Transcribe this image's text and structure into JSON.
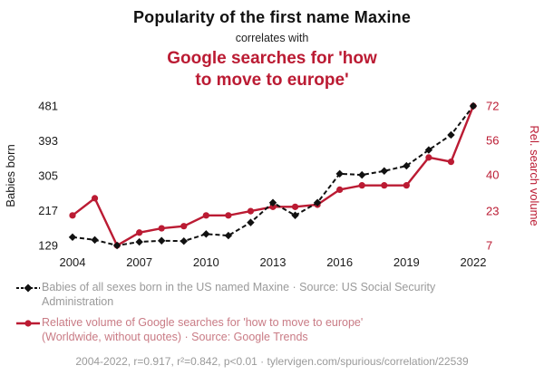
{
  "header": {
    "title": "Popularity of the first name Maxine",
    "connector": "correlates with",
    "subtitle": "Google searches for 'how\nto move to europe'"
  },
  "colors": {
    "accent": "#bb1b33",
    "series_black": "#111111",
    "legend_gray": "#9a9a9a",
    "legend_red": "#c97b85",
    "tick_color": "#1a1a1a"
  },
  "legend": [
    {
      "marker": "diamond",
      "marker_color": "#111111",
      "text_color": "#9a9a9a",
      "text": "Babies of all sexes born in the US named Maxine · Source: US Social Security\nAdministration"
    },
    {
      "marker": "circle",
      "marker_color": "#bb1b33",
      "text_color": "#c97b85",
      "text": "Relative volume of Google searches for 'how to move to europe'\n(Worldwide, without quotes) · Source: Google Trends"
    }
  ],
  "footer": {
    "text": "2004-2022, r=0.917, r²=0.842, p<0.01 · tylervigen.com/spurious/correlation/22539"
  },
  "chart_data": {
    "type": "line",
    "title": "Popularity of the first name Maxine correlates with Google searches for 'how to move to europe'",
    "x": [
      2004,
      2005,
      2006,
      2007,
      2008,
      2009,
      2010,
      2011,
      2012,
      2013,
      2014,
      2015,
      2016,
      2017,
      2018,
      2019,
      2020,
      2021,
      2022
    ],
    "x_ticks": [
      2004,
      2007,
      2010,
      2013,
      2016,
      2019,
      2022
    ],
    "left_axis": {
      "label": "Babies born",
      "ticks": [
        129,
        217,
        305,
        393,
        481
      ],
      "min": 129,
      "max": 481
    },
    "right_axis": {
      "label": "Rel. search volume",
      "ticks": [
        7,
        23,
        40,
        56,
        72
      ],
      "min": 7,
      "max": 72
    },
    "grid": false,
    "legend_position": "bottom",
    "series": [
      {
        "name": "Babies of all sexes born in the US named Maxine",
        "axis": "left",
        "color": "#111111",
        "dash": true,
        "marker": "diamond",
        "values": [
          150,
          143,
          129,
          138,
          141,
          140,
          158,
          154,
          187,
          237,
          205,
          237,
          310,
          307,
          317,
          330,
          370,
          408,
          481
        ]
      },
      {
        "name": "Relative volume of Google searches for 'how to move to europe'",
        "axis": "right",
        "color": "#bb1b33",
        "dash": false,
        "marker": "circle",
        "values": [
          21,
          29,
          7,
          13,
          15,
          16,
          21,
          21,
          23,
          25,
          25,
          26,
          33,
          35,
          35,
          35,
          48,
          46,
          72
        ]
      }
    ]
  }
}
